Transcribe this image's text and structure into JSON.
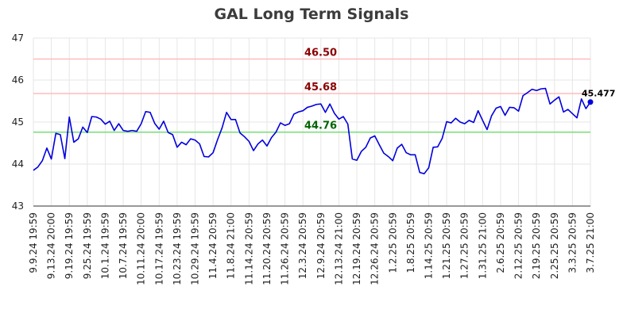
{
  "chart_data": {
    "type": "line",
    "title": "GAL Long Term Signals",
    "xlabel": "",
    "ylabel": "",
    "ylim": [
      43,
      47
    ],
    "yticks": [
      43,
      44,
      45,
      46,
      47
    ],
    "grid": true,
    "xtick_labels": [
      "9.9.24 19:59",
      "9.13.24 20:00",
      "9.19.24 19:59",
      "9.25.24 19:59",
      "10.1.24 19:59",
      "10.7.24 19:59",
      "10.11.24 20:00",
      "10.17.24 19:59",
      "10.23.24 19:59",
      "10.29.24 19:59",
      "11.4.24 20:59",
      "11.8.24 21:00",
      "11.14.24 20:59",
      "11.20.24 20:59",
      "11.26.24 20:59",
      "12.3.24 20:59",
      "12.9.24 20:59",
      "12.13.24 21:00",
      "12.19.24 20:59",
      "12.26.24 20:59",
      "1.2.25 20:59",
      "1.8.25 20:59",
      "1.14.25 20:59",
      "1.21.25 20:59",
      "1.27.25 20:59",
      "1.31.25 21:00",
      "2.6.25 20:59",
      "2.12.25 20:59",
      "2.19.25 20:59",
      "2.25.25 20:59",
      "3.3.25 20:59",
      "3.7.25 21:00"
    ],
    "reference_lines": [
      {
        "value": 46.5,
        "label": "46.50",
        "color": "#ffbbbb",
        "label_color": "#8b0000"
      },
      {
        "value": 45.68,
        "label": "45.68",
        "color": "#ffbbbb",
        "label_color": "#8b0000"
      },
      {
        "value": 44.76,
        "label": "44.76",
        "color": "#77dd77",
        "label_color": "#006400"
      }
    ],
    "series": [
      {
        "color": "#0000dd",
        "values": [
          43.85,
          43.93,
          44.08,
          44.38,
          44.12,
          44.73,
          44.7,
          44.13,
          45.12,
          44.52,
          44.6,
          44.88,
          44.75,
          45.13,
          45.12,
          45.07,
          44.95,
          45.02,
          44.8,
          44.96,
          44.8,
          44.78,
          44.8,
          44.78,
          44.96,
          45.25,
          45.23,
          44.97,
          44.83,
          45.02,
          44.75,
          44.7,
          44.4,
          44.52,
          44.46,
          44.6,
          44.57,
          44.48,
          44.18,
          44.17,
          44.27,
          44.58,
          44.86,
          45.23,
          45.06,
          45.06,
          44.74,
          44.65,
          44.54,
          44.32,
          44.48,
          44.57,
          44.43,
          44.63,
          44.76,
          44.98,
          44.92,
          44.96,
          45.19,
          45.24,
          45.27,
          45.35,
          45.38,
          45.42,
          45.43,
          45.23,
          45.43,
          45.21,
          45.07,
          45.13,
          44.95,
          44.12,
          44.09,
          44.3,
          44.4,
          44.62,
          44.67,
          44.46,
          44.26,
          44.18,
          44.08,
          44.38,
          44.47,
          44.27,
          44.22,
          44.22,
          43.8,
          43.77,
          43.91,
          44.4,
          44.41,
          44.61,
          45.01,
          44.98,
          45.09,
          45.0,
          44.96,
          45.04,
          44.99,
          45.27,
          45.04,
          44.82,
          45.15,
          45.33,
          45.37,
          45.16,
          45.35,
          45.34,
          45.26,
          45.63,
          45.7,
          45.78,
          45.75,
          45.79,
          45.8,
          45.43,
          45.52,
          45.6,
          45.24,
          45.3,
          45.2,
          45.1,
          45.55,
          45.32,
          45.477
        ]
      }
    ],
    "last_value_label": "45.477"
  }
}
